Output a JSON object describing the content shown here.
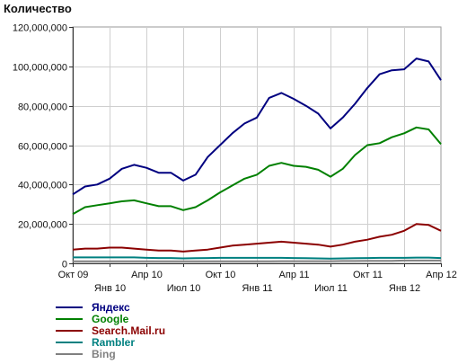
{
  "chart_data": {
    "type": "line",
    "title": "",
    "ylabel": "Количество",
    "xlabel": "",
    "ylim": [
      0,
      120000000
    ],
    "yticks": [
      0,
      20000000,
      40000000,
      60000000,
      80000000,
      100000000,
      120000000
    ],
    "ytick_labels": [
      "0",
      "20,000,000",
      "40,000,000",
      "60,000,000",
      "80,000,000",
      "100,000,000",
      "120,000,000"
    ],
    "x": [
      "2009-10",
      "2009-11",
      "2009-12",
      "2010-01",
      "2010-02",
      "2010-03",
      "2010-04",
      "2010-05",
      "2010-06",
      "2010-07",
      "2010-08",
      "2010-09",
      "2010-10",
      "2010-11",
      "2010-12",
      "2011-01",
      "2011-02",
      "2011-03",
      "2011-04",
      "2011-05",
      "2011-06",
      "2011-07",
      "2011-08",
      "2011-09",
      "2011-10",
      "2011-11",
      "2011-12",
      "2012-01",
      "2012-02",
      "2012-03",
      "2012-04"
    ],
    "xticks": [
      {
        "index": 0,
        "label": "Окт 09",
        "row": 1
      },
      {
        "index": 3,
        "label": "Янв 10",
        "row": 2
      },
      {
        "index": 6,
        "label": "Апр 10",
        "row": 1
      },
      {
        "index": 9,
        "label": "Июл 10",
        "row": 2
      },
      {
        "index": 12,
        "label": "Окт 10",
        "row": 1
      },
      {
        "index": 15,
        "label": "Янв 11",
        "row": 2
      },
      {
        "index": 18,
        "label": "Апр 11",
        "row": 1
      },
      {
        "index": 21,
        "label": "Июл 11",
        "row": 2
      },
      {
        "index": 24,
        "label": "Окт 11",
        "row": 1
      },
      {
        "index": 27,
        "label": "Янв 12",
        "row": 2
      },
      {
        "index": 30,
        "label": "Апр 12",
        "row": 1
      }
    ],
    "grid": true,
    "legend_position": "bottom-left",
    "series": [
      {
        "name": "Яндекс",
        "color": "#000080",
        "values": [
          35000000,
          39000000,
          40000000,
          43000000,
          48000000,
          50000000,
          48500000,
          46000000,
          46000000,
          42000000,
          45000000,
          54000000,
          60000000,
          66000000,
          71000000,
          74000000,
          84000000,
          86500000,
          83500000,
          80000000,
          76000000,
          68500000,
          74000000,
          81000000,
          89000000,
          96000000,
          98000000,
          98500000,
          104000000,
          102500000,
          93000000
        ]
      },
      {
        "name": "Google",
        "color": "#008000",
        "values": [
          25000000,
          28500000,
          29500000,
          30500000,
          31500000,
          32000000,
          30500000,
          29000000,
          29000000,
          27000000,
          28500000,
          32000000,
          36000000,
          39500000,
          43000000,
          45000000,
          49500000,
          51000000,
          49500000,
          49000000,
          47500000,
          44000000,
          48000000,
          55000000,
          60000000,
          61000000,
          64000000,
          66000000,
          69000000,
          68000000,
          60500000
        ]
      },
      {
        "name": "Search.Mail.ru",
        "color": "#8b0000",
        "values": [
          7000000,
          7500000,
          7500000,
          8000000,
          8000000,
          7500000,
          7000000,
          6500000,
          6500000,
          6000000,
          6500000,
          7000000,
          8000000,
          9000000,
          9500000,
          10000000,
          10500000,
          11000000,
          10500000,
          10000000,
          9500000,
          8500000,
          9500000,
          11000000,
          12000000,
          13500000,
          14500000,
          16500000,
          20000000,
          19500000,
          16500000
        ]
      },
      {
        "name": "Rambler",
        "color": "#008080",
        "values": [
          3000000,
          3000000,
          3000000,
          3000000,
          3000000,
          3000000,
          2800000,
          2700000,
          2700000,
          2500000,
          2600000,
          2700000,
          2800000,
          2800000,
          2800000,
          2800000,
          2800000,
          2800000,
          2700000,
          2600000,
          2500000,
          2400000,
          2500000,
          2600000,
          2700000,
          2800000,
          2800000,
          2800000,
          2900000,
          2900000,
          2700000
        ]
      },
      {
        "name": "Bing",
        "color": "#808080",
        "values": [
          1000000,
          1000000,
          1000000,
          1000000,
          1000000,
          1000000,
          1000000,
          1000000,
          1000000,
          1000000,
          1000000,
          1000000,
          1000000,
          1000000,
          1000000,
          1000000,
          1000000,
          1100000,
          1100000,
          1100000,
          1100000,
          1100000,
          1200000,
          1200000,
          1300000,
          1300000,
          1300000,
          1400000,
          1400000,
          1400000,
          1400000
        ]
      }
    ]
  }
}
